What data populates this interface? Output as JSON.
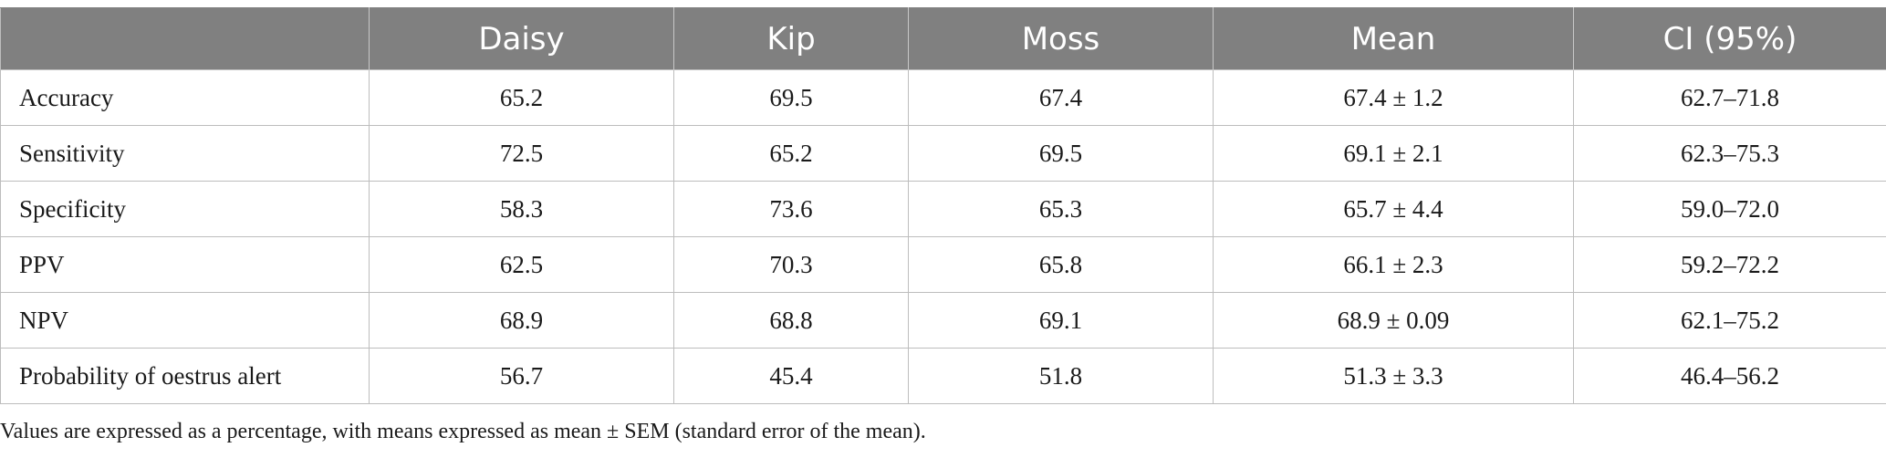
{
  "table": {
    "columns": [
      "",
      "Daisy",
      "Kip",
      "Moss",
      "Mean",
      "CI (95%)"
    ],
    "rows": [
      [
        "Accuracy",
        "65.2",
        "69.5",
        "67.4",
        "67.4 ± 1.2",
        "62.7–71.8"
      ],
      [
        "Sensitivity",
        "72.5",
        "65.2",
        "69.5",
        "69.1 ± 2.1",
        "62.3–75.3"
      ],
      [
        "Specificity",
        "58.3",
        "73.6",
        "65.3",
        "65.7 ± 4.4",
        "59.0–72.0"
      ],
      [
        "PPV",
        "62.5",
        "70.3",
        "65.8",
        "66.1 ± 2.3",
        "59.2–72.2"
      ],
      [
        "NPV",
        "68.9",
        "68.8",
        "69.1",
        "68.9 ± 0.09",
        "62.1–75.2"
      ],
      [
        "Probability of oestrus alert",
        "56.7",
        "45.4",
        "51.8",
        "51.3 ± 3.3",
        "46.4–56.2"
      ]
    ]
  },
  "footnote": "Values are expressed as a percentage, with means expressed as mean ± SEM (standard error of the mean)."
}
